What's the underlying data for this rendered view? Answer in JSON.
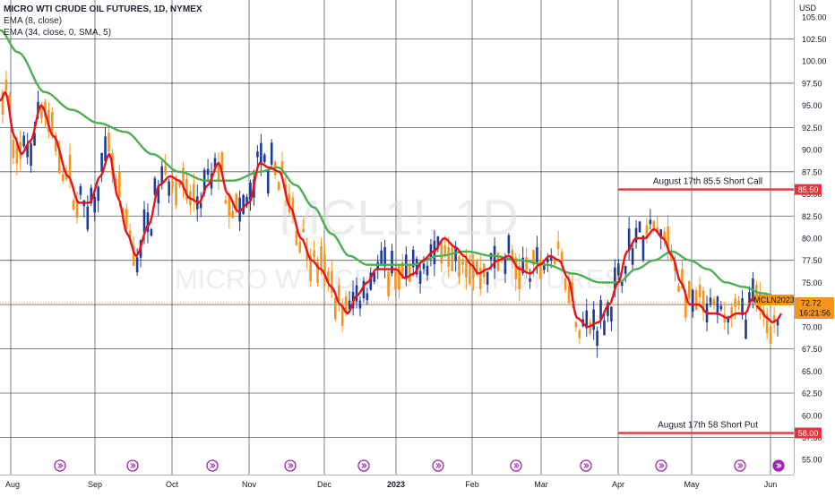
{
  "chart_data": {
    "type": "candlestick",
    "title": "MICRO WTI CRUDE OIL FUTURES, 1D, NYMEX",
    "watermark": {
      "symbol": "MCL1!, 1D",
      "name": "MICRO WTI CRUDE OIL FUTURES"
    },
    "indicators": [
      "EMA (8, close)",
      "EMA (34, close, 0, SMA, 5)"
    ],
    "currency": "USD",
    "ylim": [
      53.3,
      106.9
    ],
    "y_ticks": [
      55,
      57.5,
      60,
      62.5,
      65,
      67.5,
      70,
      72.5,
      75,
      77.5,
      80,
      82.5,
      85,
      87.5,
      90,
      92.5,
      95,
      97.5,
      100,
      102.5,
      105
    ],
    "x_ticks": [
      "Aug",
      "Sep",
      "Oct",
      "Nov",
      "Dec",
      "2023",
      "Feb",
      "Mar",
      "Apr",
      "May",
      "Jun"
    ],
    "x_tick_bold": "2023",
    "colors": {
      "up": "#1e3c96",
      "down": "#f7941d",
      "ema_fast": "#e8141b",
      "ema_slow": "#4caf50",
      "level": "#e8333a",
      "last_price": "#f7941d",
      "event": "#9c27b0"
    },
    "ema8_knots": [
      [
        0,
        95.5
      ],
      [
        6,
        96.5
      ],
      [
        16,
        91.5
      ],
      [
        24,
        89.5
      ],
      [
        34,
        91
      ],
      [
        46,
        95
      ],
      [
        60,
        91.5
      ],
      [
        76,
        87
      ],
      [
        88,
        84
      ],
      [
        100,
        84
      ],
      [
        112,
        87
      ],
      [
        122,
        89.5
      ],
      [
        132,
        84.5
      ],
      [
        142,
        80.5
      ],
      [
        152,
        78
      ],
      [
        166,
        81.5
      ],
      [
        178,
        86
      ],
      [
        190,
        87
      ],
      [
        200,
        86.5
      ],
      [
        212,
        84.5
      ],
      [
        222,
        84
      ],
      [
        232,
        86
      ],
      [
        244,
        88.5
      ],
      [
        254,
        85
      ],
      [
        266,
        83
      ],
      [
        278,
        84
      ],
      [
        290,
        88.5
      ],
      [
        300,
        88
      ],
      [
        312,
        87.5
      ],
      [
        324,
        83.5
      ],
      [
        336,
        80
      ],
      [
        348,
        77.5
      ],
      [
        358,
        76.5
      ],
      [
        370,
        74.5
      ],
      [
        380,
        72.5
      ],
      [
        388,
        71.5
      ],
      [
        398,
        73.5
      ],
      [
        410,
        75
      ],
      [
        420,
        76.5
      ],
      [
        430,
        76.5
      ],
      [
        442,
        76.5
      ],
      [
        452,
        75.5
      ],
      [
        462,
        76
      ],
      [
        472,
        77.5
      ],
      [
        484,
        78.5
      ],
      [
        496,
        80
      ],
      [
        508,
        79
      ],
      [
        518,
        78
      ],
      [
        526,
        77
      ],
      [
        534,
        76
      ],
      [
        544,
        76.5
      ],
      [
        556,
        77.5
      ],
      [
        568,
        78
      ],
      [
        580,
        76.5
      ],
      [
        592,
        76
      ],
      [
        602,
        77
      ],
      [
        614,
        78
      ],
      [
        624,
        77.5
      ],
      [
        634,
        75.5
      ],
      [
        644,
        71
      ],
      [
        656,
        70
      ],
      [
        668,
        70.5
      ],
      [
        680,
        72.5
      ],
      [
        690,
        75
      ],
      [
        700,
        78.5
      ],
      [
        710,
        80
      ],
      [
        720,
        80
      ],
      [
        730,
        81
      ],
      [
        740,
        80
      ],
      [
        750,
        78
      ],
      [
        760,
        75
      ],
      [
        770,
        72.5
      ],
      [
        780,
        72.5
      ],
      [
        790,
        71.5
      ],
      [
        800,
        71.5
      ],
      [
        812,
        71
      ],
      [
        822,
        71.5
      ],
      [
        832,
        71.5
      ],
      [
        840,
        73.2
      ],
      [
        848,
        72
      ],
      [
        856,
        71
      ],
      [
        862,
        70.5
      ],
      [
        868,
        70.8
      ],
      [
        872,
        71.5
      ]
    ],
    "ema34_knots": [
      [
        0,
        103.5
      ],
      [
        20,
        101
      ],
      [
        50,
        96.5
      ],
      [
        80,
        94.5
      ],
      [
        110,
        93
      ],
      [
        140,
        92
      ],
      [
        170,
        89.5
      ],
      [
        200,
        87.5
      ],
      [
        230,
        86.5
      ],
      [
        260,
        86.5
      ],
      [
        290,
        87.5
      ],
      [
        310,
        88
      ],
      [
        330,
        86
      ],
      [
        350,
        83.5
      ],
      [
        370,
        80.5
      ],
      [
        390,
        78
      ],
      [
        410,
        77
      ],
      [
        430,
        77
      ],
      [
        460,
        77
      ],
      [
        490,
        78
      ],
      [
        520,
        78.5
      ],
      [
        550,
        78
      ],
      [
        580,
        77.5
      ],
      [
        610,
        77
      ],
      [
        640,
        76
      ],
      [
        670,
        75
      ],
      [
        690,
        75
      ],
      [
        710,
        76.5
      ],
      [
        730,
        77.5
      ],
      [
        750,
        78.5
      ],
      [
        770,
        77.5
      ],
      [
        790,
        76.5
      ],
      [
        810,
        75
      ],
      [
        830,
        74.5
      ],
      [
        850,
        73.8
      ],
      [
        872,
        73.3
      ]
    ],
    "price_levels": [
      {
        "label": "August 17th 85.5 Short Call",
        "value": 85.5,
        "tag": "85.50"
      },
      {
        "label": "August 17th 58 Short Put",
        "value": 58.0,
        "tag": "58.00"
      }
    ],
    "last_price": {
      "value": 72.72,
      "label": "72.72",
      "countdown": "16:21:56",
      "contract": "MCLN2023"
    },
    "event_icon_count": 11
  }
}
